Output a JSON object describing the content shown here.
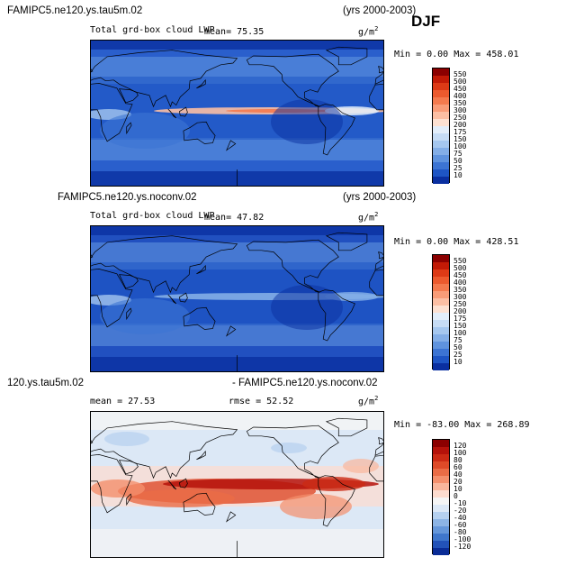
{
  "season": "DJF",
  "panels": [
    {
      "case": "FAMIPC5.ne120.ys.tau5m.02",
      "years": "(yrs 2000-2003)",
      "variable": "Total grd-box cloud LWP",
      "mean": "mean=  75.35",
      "unit_base": "g/m",
      "unit_exp": "2",
      "minmax": "Min =    0.00 Max = 458.01",
      "colorbar": {
        "levels": [
          "550",
          "500",
          "450",
          "400",
          "350",
          "300",
          "250",
          "200",
          "175",
          "150",
          "100",
          "75",
          "50",
          "25",
          "10"
        ],
        "colors": [
          "#8b0000",
          "#c21a06",
          "#dd3a16",
          "#ec5a2e",
          "#f47a4e",
          "#f99c78",
          "#fcbfa4",
          "#fde1d2",
          "#e3eefa",
          "#c6dcf5",
          "#a5c7ef",
          "#83aee7",
          "#5f93de",
          "#3c74d3",
          "#1e55c4",
          "#0a2fa0"
        ]
      },
      "map_style": "lwp_a"
    },
    {
      "case": "FAMIPC5.ne120.ys.noconv.02",
      "years": "(yrs 2000-2003)",
      "variable": "Total grd-box cloud LWP",
      "mean": "mean=  47.82",
      "unit_base": "g/m",
      "unit_exp": "2",
      "minmax": "Min =    0.00 Max = 428.51",
      "colorbar": {
        "levels": [
          "550",
          "500",
          "450",
          "400",
          "350",
          "300",
          "250",
          "200",
          "175",
          "150",
          "100",
          "75",
          "50",
          "25",
          "10"
        ],
        "colors": [
          "#8b0000",
          "#c21a06",
          "#dd3a16",
          "#ec5a2e",
          "#f47a4e",
          "#f99c78",
          "#fcbfa4",
          "#fde1d2",
          "#e3eefa",
          "#c6dcf5",
          "#a5c7ef",
          "#83aee7",
          "#5f93de",
          "#3c74d3",
          "#1e55c4",
          "#0a2fa0"
        ]
      },
      "map_style": "lwp_b"
    },
    {
      "case": "120.ys.tau5m.02",
      "years": "- FAMIPC5.ne120.ys.noconv.02",
      "variable": "",
      "mean": "mean =   27.53",
      "rmse": "rmse =   52.52",
      "unit_base": "g/m",
      "unit_exp": "2",
      "minmax": "Min = -83.00 Max = 268.89",
      "colorbar": {
        "levels": [
          "120",
          "100",
          "80",
          "60",
          "40",
          "20",
          "10",
          "0",
          "-10",
          "-20",
          "-40",
          "-60",
          "-80",
          "-100",
          "-120"
        ],
        "colors": [
          "#8b0000",
          "#b5120a",
          "#cc2a14",
          "#de4a28",
          "#ea6c46",
          "#f48f6c",
          "#f9b69c",
          "#fddccf",
          "#f5f5f5",
          "#dce8f6",
          "#b5d0ef",
          "#8cb4e5",
          "#6597da",
          "#3f77cc",
          "#2252b8",
          "#0a2c96"
        ]
      },
      "map_style": "diff"
    }
  ]
}
